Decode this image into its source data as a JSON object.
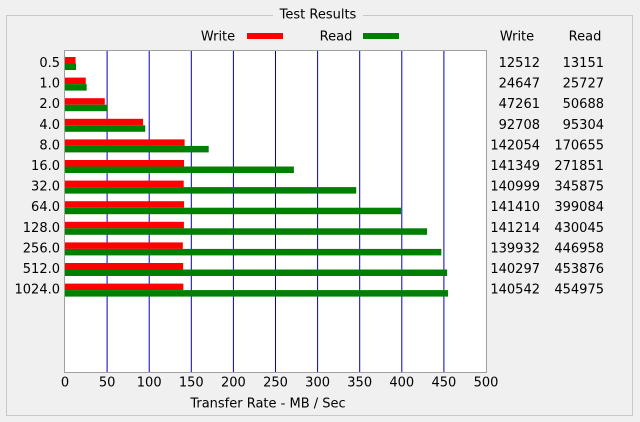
{
  "chart_data": {
    "type": "bar",
    "orientation": "horizontal",
    "title": "Test Results",
    "categories": [
      "0.5",
      "1.0",
      "2.0",
      "4.0",
      "8.0",
      "16.0",
      "32.0",
      "64.0",
      "128.0",
      "256.0",
      "512.0",
      "1024.0"
    ],
    "series": [
      {
        "name": "Write",
        "color": "#ff0000",
        "values": [
          12.512,
          24.647,
          47.261,
          92.708,
          142.054,
          141.349,
          140.999,
          141.41,
          141.214,
          139.932,
          140.297,
          140.542
        ],
        "value_labels": [
          "12512",
          "24647",
          "47261",
          "92708",
          "142054",
          "141349",
          "140999",
          "141410",
          "141214",
          "139932",
          "140297",
          "140542"
        ]
      },
      {
        "name": "Read",
        "color": "#008000",
        "values": [
          13.151,
          25.727,
          50.688,
          95.304,
          170.655,
          271.851,
          345.875,
          399.084,
          430.045,
          446.958,
          453.876,
          454.975
        ],
        "value_labels": [
          "13151",
          "25727",
          "50688",
          "95304",
          "170655",
          "271851",
          "345875",
          "399084",
          "430045",
          "446958",
          "453876",
          "454975"
        ]
      }
    ],
    "xlim": [
      0,
      500
    ],
    "xticks": [
      0,
      50,
      100,
      150,
      200,
      250,
      300,
      350,
      400,
      450,
      500
    ],
    "x_label": "Transfer Rate - MB / Sec",
    "grid": true,
    "grid_color": "#0000c0"
  }
}
